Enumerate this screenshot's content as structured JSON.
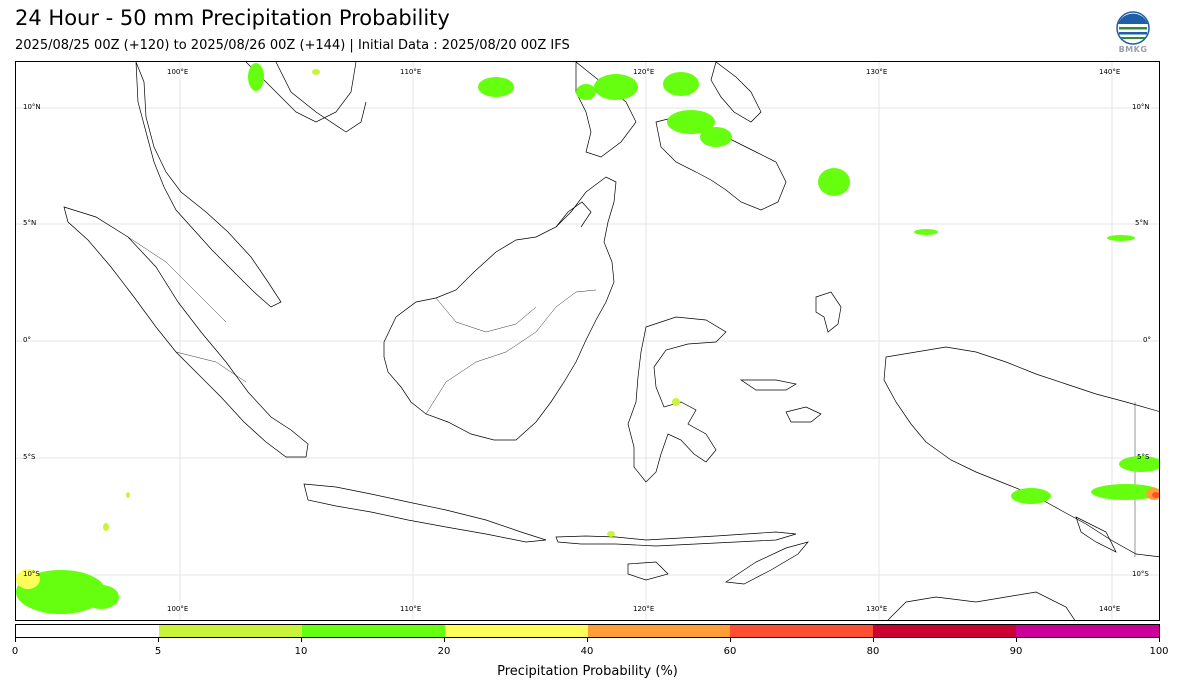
{
  "header": {
    "title": "24 Hour - 50 mm Precipitation Probability",
    "subtitle": "2025/08/25 00Z (+120) to 2025/08/26 00Z (+144) | Initial Data : 2025/08/20 00Z IFS",
    "logo_text": "BMKG"
  },
  "map": {
    "top_lon_labels": [
      "100°E",
      "110°E",
      "120°E",
      "130°E",
      "140°E"
    ],
    "bottom_lon_labels": [
      "100°E",
      "110°E",
      "120°E",
      "130°E",
      "140°E"
    ],
    "left_lat_labels": [
      "10°N",
      "5°N",
      "0°",
      "5°S",
      "10°S"
    ],
    "right_lat_labels": [
      "10°N",
      "5°N",
      "0°",
      "5°S",
      "10°S"
    ]
  },
  "colorbar": {
    "title": "Precipitation Probability (%)",
    "ticks": [
      "0",
      "5",
      "10",
      "20",
      "40",
      "60",
      "80",
      "90",
      "100"
    ],
    "colors": [
      "#ffffff",
      "#c8f53a",
      "#66ff0f",
      "#ffff5a",
      "#ff9d36",
      "#ff4e31",
      "#cc0033",
      "#cc0099"
    ]
  }
}
